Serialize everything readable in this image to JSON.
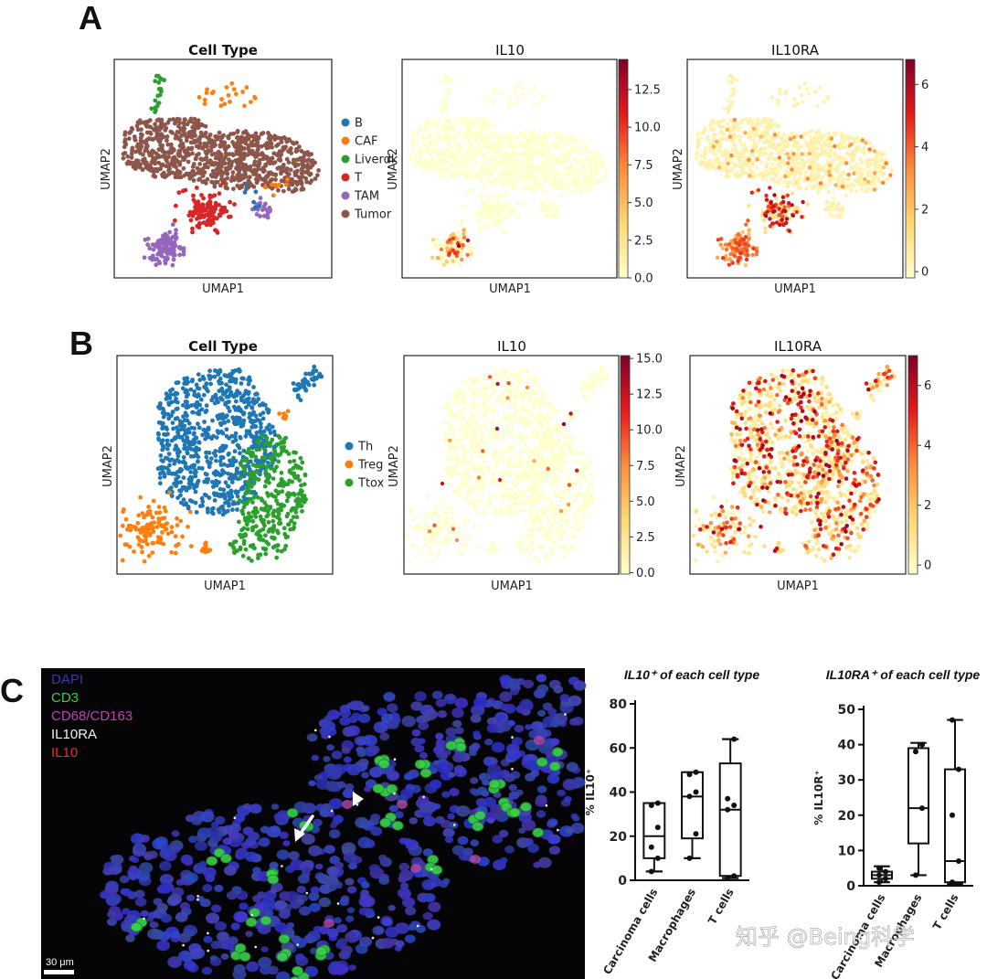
{
  "panels": {
    "A": {
      "letter": "A",
      "titles": [
        "Cell Type",
        "IL10",
        "IL10RA"
      ],
      "xlabel": "UMAP1",
      "ylabel": "UMAP2",
      "legend": [
        {
          "label": "B",
          "color": "#1f77b4"
        },
        {
          "label": "CAF",
          "color": "#ff7f0e"
        },
        {
          "label": "Liverdk",
          "color": "#2ca02c"
        },
        {
          "label": "T",
          "color": "#d62728"
        },
        {
          "label": "TAM",
          "color": "#9467bd"
        },
        {
          "label": "Tumor",
          "color": "#8c564b"
        }
      ],
      "il10_colorbar": {
        "ticks": [
          "12.5",
          "10.0",
          "7.5",
          "5.0",
          "2.5",
          "0.0"
        ],
        "min": 0,
        "max": 14.5
      },
      "il10ra_colorbar": {
        "ticks": [
          "6",
          "4",
          "2",
          "0"
        ],
        "min": -0.2,
        "max": 6.8
      }
    },
    "B": {
      "letter": "B",
      "titles": [
        "Cell Type",
        "IL10",
        "IL10RA"
      ],
      "xlabel": "UMAP1",
      "ylabel": "UMAP2",
      "legend": [
        {
          "label": "Th",
          "color": "#1f77b4"
        },
        {
          "label": "Treg",
          "color": "#ff7f0e"
        },
        {
          "label": "Ttox",
          "color": "#2ca02c"
        }
      ],
      "il10_colorbar": {
        "ticks": [
          "15.0",
          "12.5",
          "10.0",
          "7.5",
          "5.0",
          "2.5",
          "0.0"
        ],
        "min": -0.1,
        "max": 15.2
      },
      "il10ra_colorbar": {
        "ticks": [
          "6",
          "4",
          "2",
          "0"
        ],
        "min": -0.3,
        "max": 7
      }
    },
    "C": {
      "letter": "C",
      "micro_legend": [
        {
          "label": "DAPI",
          "color": "#3a3aa8"
        },
        {
          "label": "CD3",
          "color": "#39d04a"
        },
        {
          "label": "CD68/CD163",
          "color": "#c040b8"
        },
        {
          "label": "IL10RA",
          "color": "#f2f2f2"
        },
        {
          "label": "IL10",
          "color": "#e03030"
        }
      ],
      "scalebar": "30 μm"
    }
  },
  "chart_data": [
    {
      "type": "box",
      "title": "IL10⁺ of each cell type",
      "ylabel": "% IL10⁺",
      "ylim": [
        0,
        80
      ],
      "yticks": [
        0,
        20,
        40,
        60,
        80
      ],
      "categories": [
        "Carcinoma cells",
        "Macrophages",
        "T cells"
      ],
      "boxes": [
        {
          "min": 4,
          "q1": 10,
          "median": 20,
          "q3": 35,
          "max": 35,
          "points": [
            4,
            10,
            15,
            24,
            34,
            35
          ]
        },
        {
          "min": 10,
          "q1": 19,
          "median": 38,
          "q3": 49,
          "max": 49,
          "points": [
            10,
            21,
            38,
            40,
            48,
            49
          ]
        },
        {
          "min": 1,
          "q1": 2,
          "median": 32,
          "q3": 53,
          "max": 64,
          "points": [
            1,
            2,
            32,
            34,
            37,
            64
          ]
        }
      ]
    },
    {
      "type": "box",
      "title": "IL10RA⁺ of each cell type",
      "ylabel": "% IL10R⁺",
      "ylim": [
        0,
        50
      ],
      "yticks": [
        0,
        10,
        20,
        30,
        40,
        50
      ],
      "categories": [
        "Carcinoma cells",
        "Macrophages",
        "T cells"
      ],
      "boxes": [
        {
          "min": 1,
          "q1": 2,
          "median": 3,
          "q3": 4,
          "max": 5.5,
          "points": [
            1,
            2,
            3,
            4,
            5
          ]
        },
        {
          "min": 3,
          "q1": 12,
          "median": 22,
          "q3": 39,
          "max": 40.5,
          "points": [
            3,
            22,
            38,
            40
          ]
        },
        {
          "min": 0.5,
          "q1": 1,
          "median": 7,
          "q3": 33,
          "max": 47,
          "points": [
            1,
            7,
            20,
            33,
            47
          ]
        }
      ]
    }
  ],
  "watermark": "知乎 @Being科学"
}
